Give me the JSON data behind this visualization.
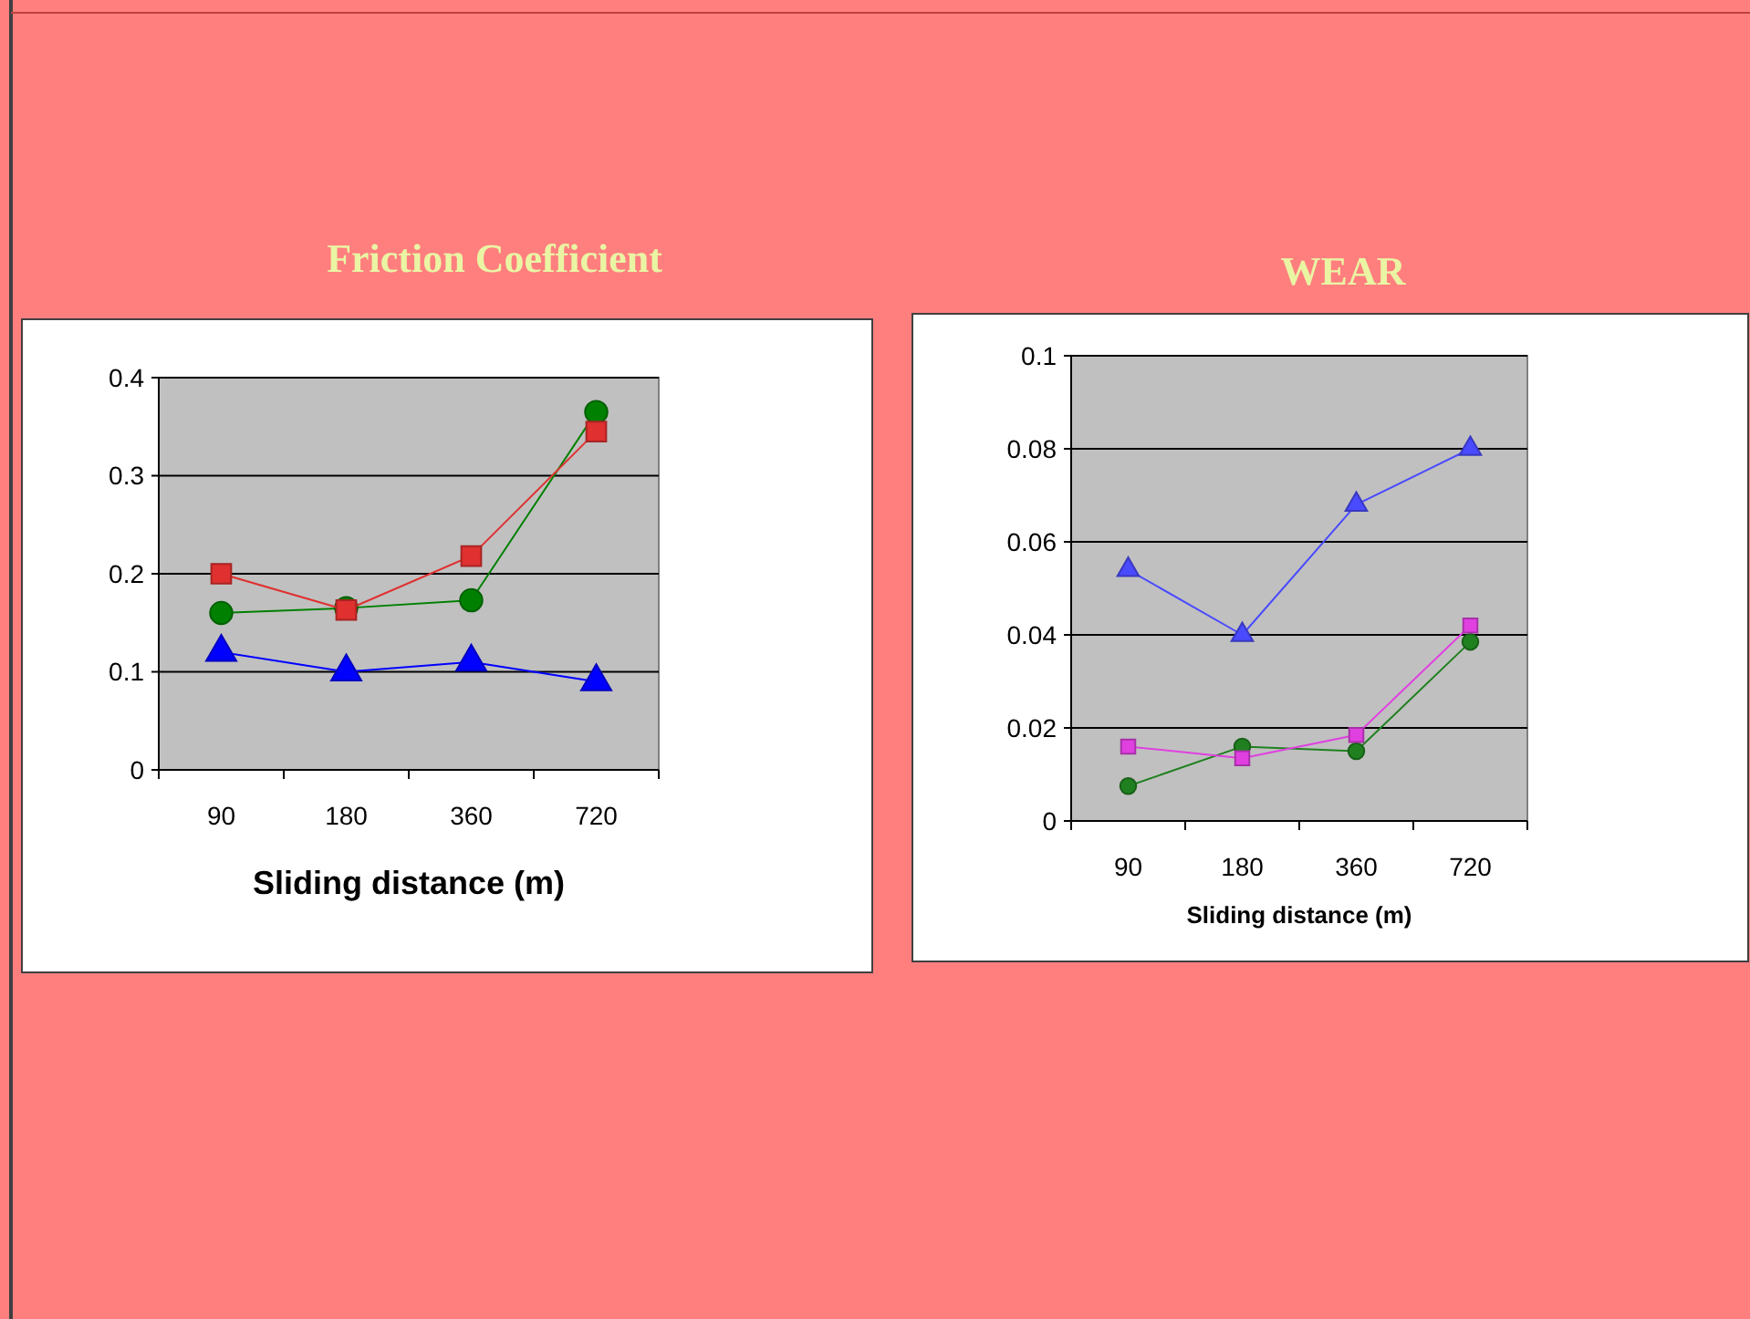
{
  "chart_data": [
    {
      "type": "line",
      "title": "Friction Coefficient",
      "xlabel": "Sliding distance (m)",
      "categories": [
        "90",
        "180",
        "360",
        "720"
      ],
      "ylim": [
        0,
        0.4
      ],
      "yticks": [
        0,
        0.1,
        0.2,
        0.3,
        0.4
      ],
      "grid": "y",
      "series": [
        {
          "color": "#e03030",
          "marker": "square",
          "values": [
            0.2,
            0.163,
            0.218,
            0.345
          ]
        },
        {
          "color": "#008000",
          "marker": "circle",
          "values": [
            0.16,
            0.165,
            0.173,
            0.365
          ]
        },
        {
          "color": "#0000ff",
          "marker": "triangle",
          "values": [
            0.12,
            0.1,
            0.11,
            0.09
          ]
        }
      ]
    },
    {
      "type": "line",
      "title": "WEAR",
      "xlabel": "Sliding distance (m)",
      "categories": [
        "90",
        "180",
        "360",
        "720"
      ],
      "ylim": [
        0,
        0.1
      ],
      "yticks": [
        0,
        0.02,
        0.04,
        0.06,
        0.08,
        0.1
      ],
      "grid": "y",
      "series": [
        {
          "color": "#4a4aff",
          "marker": "triangle",
          "values": [
            0.054,
            0.04,
            0.068,
            0.08
          ]
        },
        {
          "color": "#e040e0",
          "marker": "square",
          "values": [
            0.016,
            0.0135,
            0.0185,
            0.042
          ]
        },
        {
          "color": "#208020",
          "marker": "circle",
          "values": [
            0.0075,
            0.016,
            0.015,
            0.0385
          ]
        }
      ]
    }
  ]
}
